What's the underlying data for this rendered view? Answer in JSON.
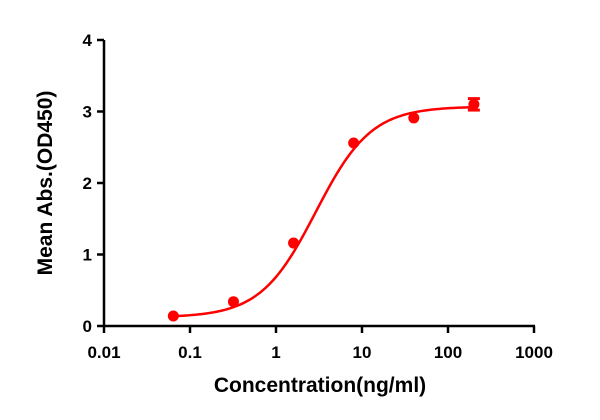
{
  "chart_data": {
    "type": "scatter",
    "title": "",
    "xlabel": "Concentration(ng/ml)",
    "ylabel": "Mean Abs.(OD450)",
    "x_scale": "log",
    "xlim": [
      0.01,
      1000
    ],
    "ylim": [
      0,
      4
    ],
    "x_ticks": [
      "0.01",
      "0.1",
      "1",
      "10",
      "100",
      "1000"
    ],
    "y_ticks": [
      "0",
      "1",
      "2",
      "3",
      "4"
    ],
    "grid": false,
    "legend": null,
    "series": [
      {
        "name": "Mean Abs.",
        "color": "#ff0000",
        "fit": "4PL sigmoidal curve",
        "x": [
          0.064,
          0.32,
          1.6,
          8,
          40,
          200
        ],
        "y": [
          0.14,
          0.34,
          1.16,
          2.56,
          2.91,
          3.1
        ],
        "error": [
          0.0,
          0.0,
          0.0,
          0.0,
          0.0,
          0.08
        ]
      }
    ],
    "fit_params": {
      "bottom": 0.12,
      "top": 3.07,
      "ec50": 2.9,
      "hill": 1.35
    }
  }
}
